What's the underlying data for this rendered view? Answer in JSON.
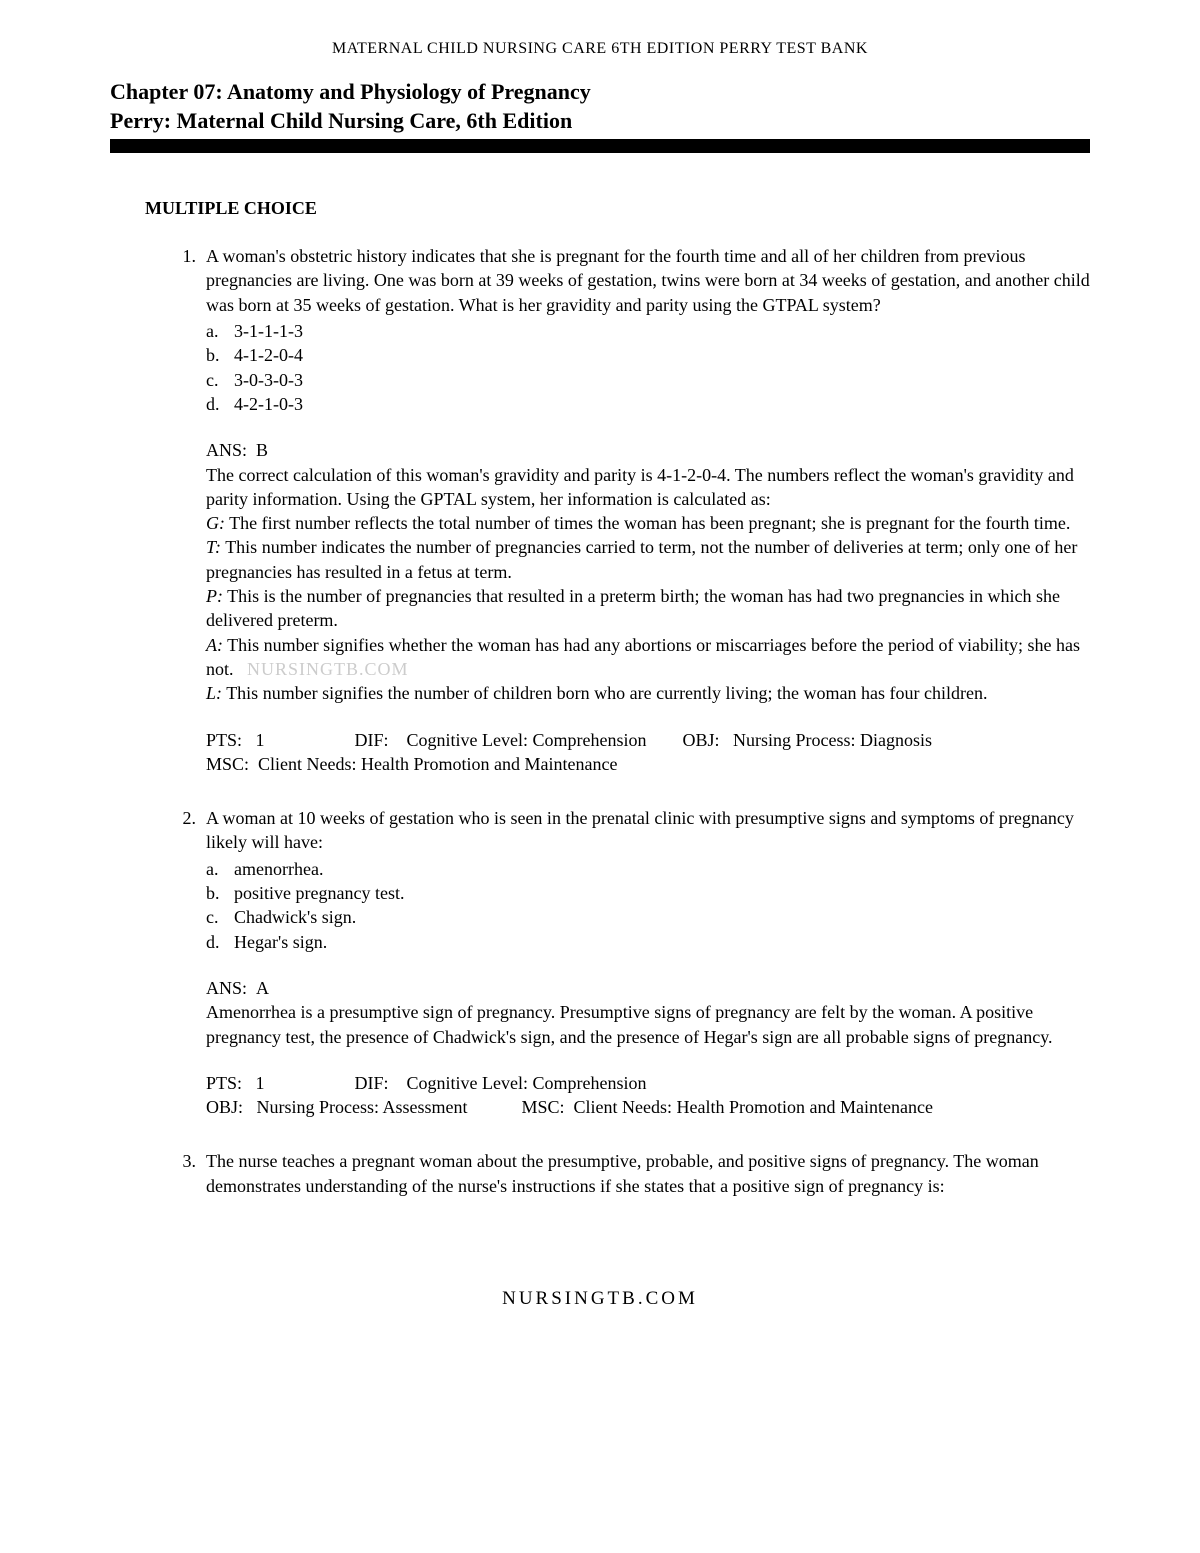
{
  "header": {
    "topLine": "MATERNAL CHILD NURSING CARE 6TH EDITION PERRY TEST BANK",
    "chapterLine1": "Chapter 07: Anatomy and Physiology of Pregnancy",
    "chapterLine2": "Perry: Maternal Child Nursing Care, 6th Edition"
  },
  "sectionTitle": "MULTIPLE CHOICE",
  "watermark": "NURSINGTB.COM",
  "footer": "NURSINGTB.COM",
  "questions": [
    {
      "num": "1.",
      "stem": "A woman's obstetric history indicates that she is pregnant for the fourth time and all of her children from previous pregnancies are living. One was born at 39 weeks of gestation, twins were born at 34 weeks of gestation, and another child was born at 35 weeks of gestation. What is her gravidity and parity using the GTPAL system?",
      "options": [
        {
          "l": "a.",
          "t": "3-1-1-1-3"
        },
        {
          "l": "b.",
          "t": "4-1-2-0-4"
        },
        {
          "l": "c.",
          "t": "3-0-3-0-3"
        },
        {
          "l": "d.",
          "t": "4-2-1-0-3"
        }
      ],
      "ansLabel": "ANS:",
      "ans": "B",
      "expl": {
        "para1": "The correct calculation of this woman's gravidity and parity is 4-1-2-0-4. The numbers reflect the woman's gravidity and parity information. Using the GPTAL system, her information is calculated as:",
        "gLabel": "G:",
        "gText": " The first number reflects the total number of times the woman has been pregnant; she is pregnant for the fourth time.",
        "tLabel": "T:",
        "tText": " This number indicates the number of pregnancies carried to term, not the number of deliveries at term; only one of her pregnancies has resulted in a fetus at term.",
        "pLabel": "P:",
        "pText": " This is the number of pregnancies that resulted in a preterm birth; the woman has had two pregnancies in which she delivered preterm.",
        "aLabel": "A:",
        "aText1": " This number signifies whether the woman has had any abortions or miscarriages before the period of viability; she has not.",
        "lLabel": "L:",
        "lText": " This number signifies the number of children born who are currently living; the woman has four children."
      },
      "meta": {
        "row1": "PTS:   1                    DIF:    Cognitive Level: Comprehension        OBJ:   Nursing Process: Diagnosis",
        "row2": "MSC:  Client Needs: Health Promotion and Maintenance"
      }
    },
    {
      "num": "2.",
      "stem": "A woman at 10 weeks of gestation who is seen in the prenatal clinic with presumptive signs and symptoms of pregnancy likely will have:",
      "options": [
        {
          "l": "a.",
          "t": "amenorrhea."
        },
        {
          "l": "b.",
          "t": "positive pregnancy test."
        },
        {
          "l": "c.",
          "t": "Chadwick's sign."
        },
        {
          "l": "d.",
          "t": "Hegar's sign."
        }
      ],
      "ansLabel": "ANS:",
      "ans": "A",
      "expl2": "Amenorrhea is a presumptive sign of pregnancy. Presumptive signs of pregnancy are felt by the woman. A positive pregnancy test, the presence of Chadwick's sign, and the presence of Hegar's sign are all probable signs of pregnancy.",
      "meta": {
        "row1": "PTS:   1                    DIF:    Cognitive Level: Comprehension",
        "row2": "OBJ:   Nursing Process: Assessment            MSC:  Client Needs: Health Promotion and Maintenance"
      }
    },
    {
      "num": "3.",
      "stem": "The nurse teaches a pregnant woman about the presumptive, probable, and positive signs of pregnancy. The woman demonstrates understanding of the nurse's instructions if she states that a positive sign of pregnancy is:"
    }
  ],
  "colors": {
    "text": "#000000",
    "background": "#ffffff",
    "bar": "#000000",
    "watermark": "#cccccc"
  },
  "typography": {
    "bodyFontSize": 18,
    "headerFontSize": 16,
    "titleFontSize": 22,
    "family": "Times New Roman"
  }
}
